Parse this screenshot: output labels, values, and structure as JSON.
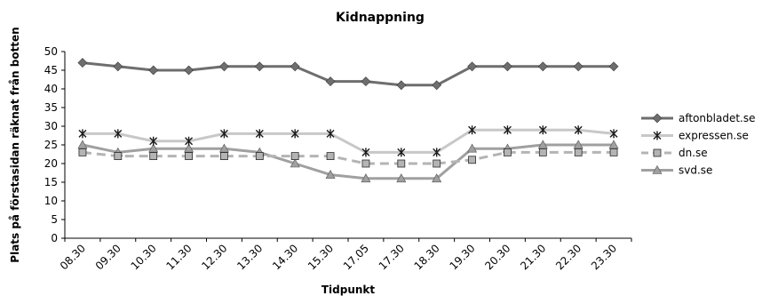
{
  "chart_data": {
    "type": "line",
    "title": "Kidnappning",
    "xlabel": "Tidpunkt",
    "ylabel": "Plats på förstasidan räknat från botten",
    "ylim": [
      0,
      50
    ],
    "yticks": [
      0,
      5,
      10,
      15,
      20,
      25,
      30,
      35,
      40,
      45,
      50
    ],
    "grid": false,
    "legend_position": "right",
    "categories": [
      "08.30",
      "09.30",
      "10.30",
      "11.30",
      "12.30",
      "13.30",
      "14.30",
      "15.30",
      "17.05",
      "17.30",
      "18.30",
      "19.30",
      "20.30",
      "21.30",
      "22.30",
      "23.30"
    ],
    "series": [
      {
        "name": "aftonbladet.se",
        "color": "#6e6e6e",
        "marker": "diamond",
        "dashed": false,
        "values": [
          47,
          46,
          45,
          45,
          46,
          46,
          46,
          42,
          42,
          41,
          41,
          46,
          46,
          46,
          46,
          46
        ]
      },
      {
        "name": "expressen.se",
        "color": "#c8c8c8",
        "marker": "star",
        "dashed": false,
        "values": [
          28,
          28,
          26,
          26,
          28,
          28,
          28,
          28,
          23,
          23,
          23,
          29,
          29,
          29,
          29,
          28
        ]
      },
      {
        "name": "dn.se",
        "color": "#b4b4b4",
        "marker": "square",
        "dashed": true,
        "values": [
          23,
          22,
          22,
          22,
          22,
          22,
          22,
          22,
          20,
          20,
          20,
          21,
          23,
          23,
          23,
          23
        ]
      },
      {
        "name": "svd.se",
        "color": "#a0a0a0",
        "marker": "triangle",
        "dashed": false,
        "values": [
          25,
          23,
          24,
          24,
          24,
          23,
          20,
          17,
          16,
          16,
          16,
          24,
          24,
          25,
          25,
          25
        ]
      }
    ]
  }
}
